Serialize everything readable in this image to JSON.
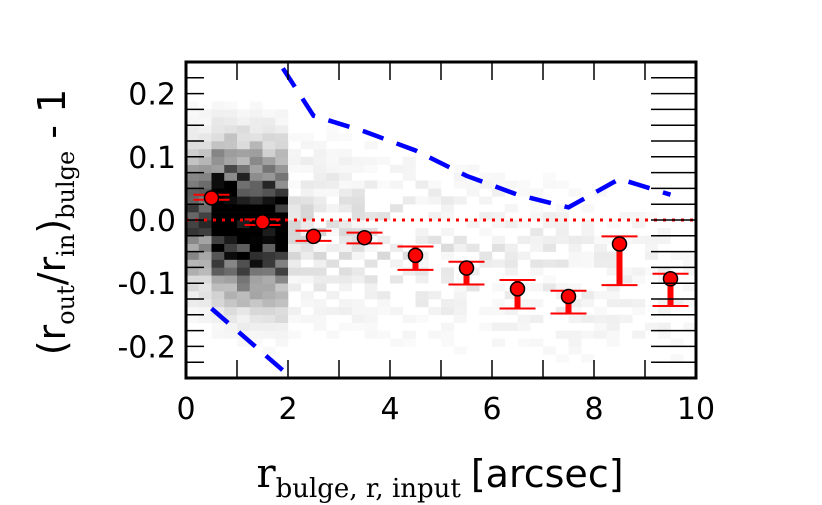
{
  "chart_data": {
    "type": "scatter",
    "title": "",
    "xlabel": {
      "main": "r",
      "sub": "bulge, r, input",
      "unit": "[arcsec]"
    },
    "ylabel": {
      "open": "(r",
      "sub1": "out",
      "mid": "/r",
      "sub2": "in",
      "close": ")",
      "sub3": "bulge",
      "tail": " - 1"
    },
    "xlim": [
      0,
      10
    ],
    "ylim": [
      -0.25,
      0.25
    ],
    "x_ticks": [
      0,
      2,
      4,
      6,
      8,
      10
    ],
    "x_tick_labels": [
      "0",
      "2",
      "4",
      "6",
      "8",
      "10"
    ],
    "y_ticks": [
      -0.2,
      -0.1,
      0.0,
      0.1,
      0.2
    ],
    "y_tick_labels": [
      "-0.2",
      "-0.1",
      "0.0",
      "0.1",
      "0.2"
    ],
    "grid": false,
    "colors": {
      "points": "#ff0000",
      "point_edge": "#000000",
      "dashed_envelope": "#0000ff",
      "zero_line": "#ff0000"
    },
    "binned_points": {
      "x": [
        0.5,
        1.5,
        2.5,
        3.5,
        4.5,
        5.5,
        6.5,
        7.5,
        8.5,
        9.5
      ],
      "y": [
        0.035,
        -0.003,
        -0.026,
        -0.028,
        -0.056,
        -0.076,
        -0.109,
        -0.121,
        -0.038,
        -0.093
      ],
      "err_low": [
        0.032,
        -0.008,
        -0.033,
        -0.037,
        -0.079,
        -0.102,
        -0.14,
        -0.148,
        -0.103,
        -0.136
      ],
      "err_high": [
        0.04,
        0.001,
        -0.017,
        -0.02,
        -0.042,
        -0.066,
        -0.095,
        -0.112,
        -0.026,
        -0.085
      ]
    },
    "dashed_envelope_upper": {
      "x": [
        1.9,
        2.5,
        3.5,
        4.5,
        5.5,
        6.5,
        7.5,
        8.5,
        9.5
      ],
      "y": [
        0.24,
        0.165,
        0.14,
        0.11,
        0.07,
        0.04,
        0.02,
        0.065,
        0.04
      ]
    },
    "dashed_envelope_lower": {
      "x": [
        0.5,
        1.0,
        1.5,
        2.0
      ],
      "y": [
        -0.14,
        -0.175,
        -0.21,
        -0.245
      ]
    },
    "zero_line": {
      "y": 0.0,
      "style": "dotted"
    },
    "background_density": {
      "x_bins": 40,
      "y_bins": 40,
      "x_range": [
        0,
        10
      ],
      "y_range": [
        -0.25,
        0.25
      ],
      "cmap": "gray_r"
    }
  }
}
